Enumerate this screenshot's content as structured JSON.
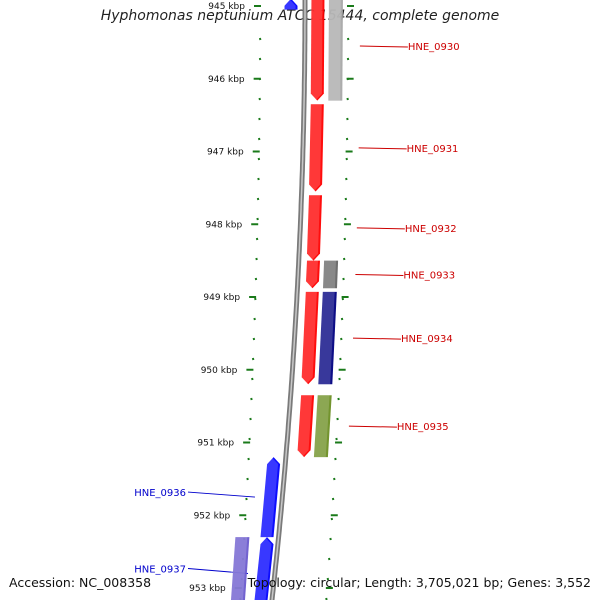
{
  "title": "Hyphomonas neptunium ATCC 15444, complete genome",
  "accession": "Accession: NC_008358",
  "topology": "Topology: circular; Length: 3,705,021 bp; Genes: 3,552",
  "colors": {
    "forward_gene": "#ff0000",
    "reverse_gene": "#0000ff",
    "backbone": "#808080",
    "tick": "#1a7a1a",
    "label_forward": "#cc0000",
    "label_reverse": "#0000cc"
  },
  "ruler": {
    "ticks": [
      {
        "label": "945 kbp",
        "kbp": 945
      },
      {
        "label": "946 kbp",
        "kbp": 946
      },
      {
        "label": "947 kbp",
        "kbp": 947
      },
      {
        "label": "948 kbp",
        "kbp": 948
      },
      {
        "label": "949 kbp",
        "kbp": 949
      },
      {
        "label": "950 kbp",
        "kbp": 950
      },
      {
        "label": "951 kbp",
        "kbp": 951
      },
      {
        "label": "952 kbp",
        "kbp": 952
      },
      {
        "label": "953 kbp",
        "kbp": 953
      }
    ]
  },
  "genes": [
    {
      "name": "",
      "strand": "reverse",
      "start_kbp": 944.9,
      "end_kbp": 945.05,
      "color": "#0000ff",
      "labeled": false
    },
    {
      "name": "",
      "strand": "forward",
      "start_kbp": 944.8,
      "end_kbp": 946.3,
      "color": "#ff0000",
      "labeled": false
    },
    {
      "name": "HNE_0930",
      "strand": "forward_track2",
      "start_kbp": 944.8,
      "end_kbp": 946.3,
      "color": "#a8a8a8",
      "labeled": true
    },
    {
      "name": "HNE_0931",
      "strand": "forward",
      "start_kbp": 946.35,
      "end_kbp": 947.55,
      "color": "#ff0000",
      "labeled": true
    },
    {
      "name": "HNE_0932",
      "strand": "forward",
      "start_kbp": 947.6,
      "end_kbp": 948.5,
      "color": "#ff0000",
      "labeled": true
    },
    {
      "name": "HNE_0933",
      "strand": "forward",
      "start_kbp": 948.5,
      "end_kbp": 948.88,
      "color": "#ff0000",
      "labeled": false
    },
    {
      "name": "HNE_0933",
      "strand": "forward_track2",
      "start_kbp": 948.5,
      "end_kbp": 948.88,
      "color": "#666666",
      "labeled": true
    },
    {
      "name": "HNE_0934",
      "strand": "forward",
      "start_kbp": 948.93,
      "end_kbp": 950.2,
      "color": "#ff0000",
      "labeled": false
    },
    {
      "name": "HNE_0934",
      "strand": "forward_track2",
      "start_kbp": 948.93,
      "end_kbp": 950.2,
      "color": "#000080",
      "labeled": true
    },
    {
      "name": "HNE_0935",
      "strand": "forward",
      "start_kbp": 950.35,
      "end_kbp": 951.2,
      "color": "#ff0000",
      "labeled": false
    },
    {
      "name": "HNE_0935",
      "strand": "forward_track2",
      "start_kbp": 950.35,
      "end_kbp": 951.2,
      "color": "#6b8e23",
      "labeled": true
    },
    {
      "name": "HNE_0936",
      "strand": "reverse",
      "start_kbp": 951.2,
      "end_kbp": 952.3,
      "color": "#0000ff",
      "labeled": true
    },
    {
      "name": "HNE_0937",
      "strand": "reverse",
      "start_kbp": 952.3,
      "end_kbp": 953.3,
      "color": "#0000ff",
      "labeled": true
    },
    {
      "name": "",
      "strand": "reverse_track2",
      "start_kbp": 952.3,
      "end_kbp": 953.3,
      "color": "#6a5acd",
      "labeled": false
    }
  ]
}
